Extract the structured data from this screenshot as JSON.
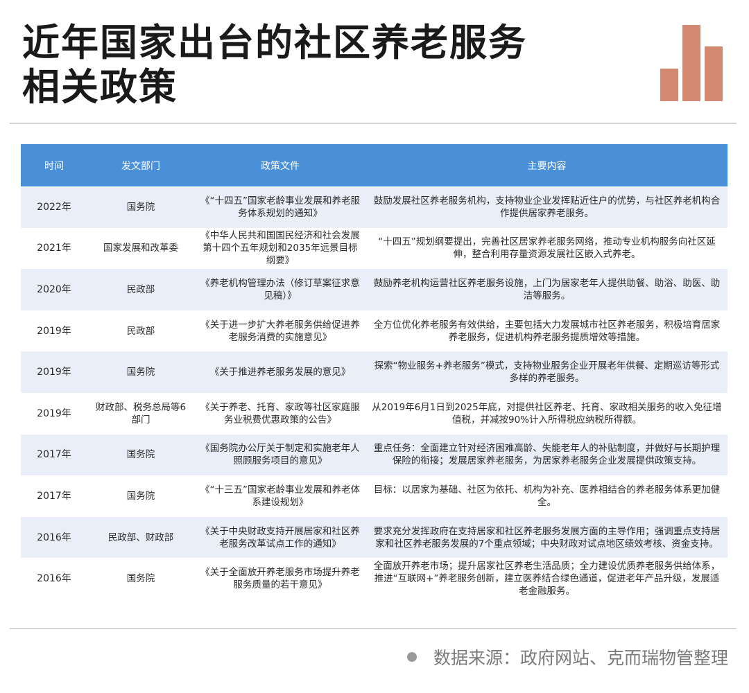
{
  "title": {
    "line1": "近年国家出台的社区养老服务",
    "line2": "相关政策"
  },
  "colors": {
    "header_bg": "#4a90d9",
    "row_stripe": "#e9eef8",
    "logo_bar": "#d48a72"
  },
  "logo": {
    "icon": "bar-chart-icon"
  },
  "table": {
    "headers": [
      "时间",
      "发文部门",
      "政策文件",
      "主要内容"
    ],
    "rows": [
      {
        "time": "2022年",
        "dept": "国务院",
        "doc": "《“十四五”国家老龄事业发展和养老服务体系规划的通知》",
        "content": "鼓励发展社区养老服务机构，支持物业企业发挥贴近住户的优势，与社区养老机构合作提供居家养老服务。"
      },
      {
        "time": "2021年",
        "dept": "国家发展和改革委",
        "doc": "《中华人民共和国国民经济和社会发展第十四个五年规划和2035年远景目标纲要》",
        "content": "“十四五”规划纲要提出，完善社区居家养老服务网络，推动专业机构服务向社区延伸，整合利用存量资源发展社区嵌入式养老。"
      },
      {
        "time": "2020年",
        "dept": "民政部",
        "doc": "《养老机构管理办法（修订草案征求意见稿）》",
        "content": "鼓励养老机构运营社区养老服务设施，上门为居家老年人提供助餐、助浴、助医、助洁等服务。"
      },
      {
        "time": "2019年",
        "dept": "民政部",
        "doc": "《关于进一步扩大养老服务供给促进养老服务消费的实施意见》",
        "content": "全方位优化养老服务有效供给，主要包括大力发展城市社区养老服务，积极培育居家养老服务，促进机构养老服务提质增效等措施。"
      },
      {
        "time": "2019年",
        "dept": "国务院",
        "doc": "《关于推进养老服务发展的意见》",
        "content": "探索“物业服务+养老服务”模式，支持物业服务企业开展老年供餐、定期巡访等形式多样的养老服务。"
      },
      {
        "time": "2019年",
        "dept": "财政部、税务总局等6部门",
        "doc": "《关于养老、托育、家政等社区家庭服务业税费优惠政策的公告》",
        "content": "从2019年6月1日到2025年底，对提供社区养老、托育、家政相关服务的收入免征增值税，并减按90%计入所得税应纳税所得额。"
      },
      {
        "time": "2017年",
        "dept": "国务院",
        "doc": "《国务院办公厅关于制定和实施老年人照顾服务项目的意见》",
        "content": "重点任务：全面建立针对经济困难高龄、失能老年人的补贴制度，并做好与长期护理保险的衔接；发展居家养老服务，为居家养老服务企业发展提供政策支持。"
      },
      {
        "time": "2017年",
        "dept": "国务院",
        "doc": "《“十三五”国家老龄事业发展和养老体系建设规划》",
        "content": "目标：以居家为基础、社区为依托、机构为补充、医养相结合的养老服务体系更加健全。"
      },
      {
        "time": "2016年",
        "dept": "民政部、财政部",
        "doc": "《关于中央财政支持开展居家和社区养老服务改革试点工作的通知》",
        "content": "要求充分发挥政府在支持居家和社区养老服务发展方面的主导作用；强调重点支持居家和社区养老服务发展的7个重点领域；中央财政对试点地区绩效考核、资金支持。"
      },
      {
        "time": "2016年",
        "dept": "国务院",
        "doc": "《关于全面放开养老服务市场提升养老服务质量的若干意见》",
        "content": "全面放开养老市场；提升居家社区养老生活品质；全力建设优质养老服务供给体系，推进“互联网+”养老服务创新，建立医养结合绿色通道，促进老年产品升级，发展适老金融服务。"
      }
    ]
  },
  "footer": {
    "source": "数据来源：政府网站、克而瑞物管整理"
  }
}
